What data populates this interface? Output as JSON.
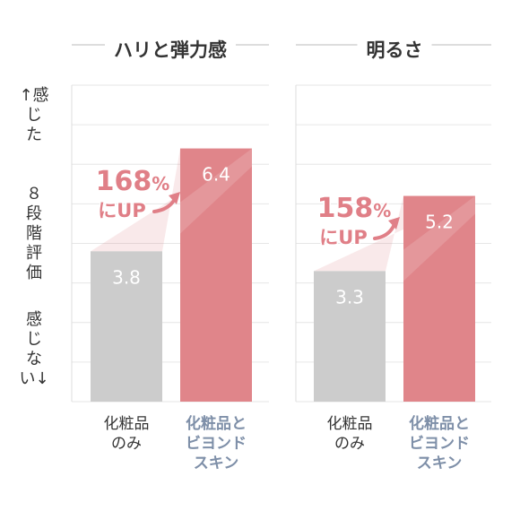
{
  "colors": {
    "base_bar": "#cccccc",
    "accent_bar": "#e0858a",
    "bar_value_text": "#ffffff",
    "up_text": "#e07f87",
    "accent_label": "#7e8fa8",
    "grid": "#e6e6e6"
  },
  "y_axis": {
    "top_label": [
      "↑感",
      "じ",
      "た"
    ],
    "middle_label": [
      "８",
      "段",
      "階",
      "評",
      "価"
    ],
    "bottom_label": [
      "感",
      "じ",
      "な",
      "い↓"
    ]
  },
  "chart_data": [
    {
      "type": "bar",
      "title": "ハリと弾力感",
      "categories": [
        [
          "化粧品",
          "のみ"
        ],
        [
          "化粧品と",
          "ビヨンド",
          "スキン"
        ]
      ],
      "values": [
        3.8,
        6.4
      ],
      "value_labels": [
        "3.8",
        "6.4"
      ],
      "ylim": [
        0,
        8
      ],
      "grid": true,
      "annotation": {
        "pct": "168",
        "unit": "%",
        "suffix": "にUP"
      }
    },
    {
      "type": "bar",
      "title": "明るさ",
      "categories": [
        [
          "化粧品",
          "のみ"
        ],
        [
          "化粧品と",
          "ビヨンド",
          "スキン"
        ]
      ],
      "values": [
        3.3,
        5.2
      ],
      "value_labels": [
        "3.3",
        "5.2"
      ],
      "ylim": [
        0,
        8
      ],
      "grid": true,
      "annotation": {
        "pct": "158",
        "unit": "%",
        "suffix": "にUP"
      }
    }
  ]
}
